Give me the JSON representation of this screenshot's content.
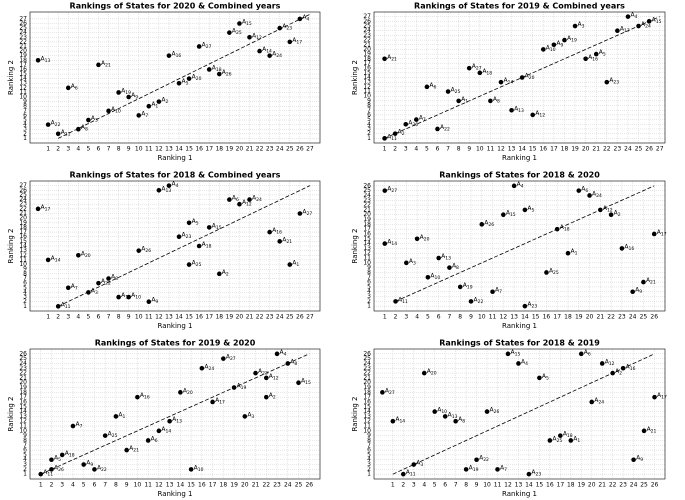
{
  "chart_data": [
    {
      "type": "scatter",
      "title": "Rankings of States for 2020 & Combined years",
      "xlabel": "Ranking 1",
      "ylabel": "Ranking 2",
      "labels": [
        "A13",
        "A22",
        "A11",
        "A6",
        "A8",
        "A3",
        "A21",
        "A10",
        "A19",
        "A9",
        "A7",
        "A1",
        "A2",
        "A16",
        "A5",
        "A20",
        "A27",
        "A18",
        "A26",
        "A25",
        "A15",
        "A12",
        "A14",
        "A24",
        "A23",
        "A17",
        "A4"
      ],
      "x": [
        0,
        1,
        2,
        3,
        4,
        5,
        6,
        7,
        8,
        9,
        10,
        11,
        12,
        13,
        14,
        15,
        16,
        17,
        18,
        19,
        20,
        21,
        22,
        23,
        24,
        25,
        26
      ],
      "y": [
        18,
        4,
        2,
        12,
        3,
        5,
        17,
        7,
        11,
        10,
        6,
        8,
        9,
        19,
        13,
        14,
        21,
        16,
        15,
        24,
        26,
        23,
        20,
        19,
        25,
        22,
        27
      ],
      "trend": {
        "x": [
          2,
          27
        ],
        "y": [
          1,
          28
        ]
      },
      "xlim": [
        -0.8,
        28
      ],
      "ylim": [
        0,
        28.5
      ],
      "xticks": [
        1,
        2,
        3,
        4,
        5,
        6,
        7,
        8,
        9,
        10,
        11,
        12,
        13,
        14,
        15,
        16,
        17,
        18,
        19,
        20,
        21,
        22,
        23,
        24,
        25,
        26,
        27
      ],
      "yticks": [
        1,
        2,
        3,
        4,
        5,
        6,
        7,
        8,
        9,
        10,
        11,
        12,
        13,
        14,
        15,
        16,
        17,
        18,
        19,
        20,
        21,
        22,
        23,
        24,
        25,
        26,
        27
      ],
      "grid": true
    },
    {
      "type": "scatter",
      "title": "Rankings of States for 2019 & Combined years",
      "xlabel": "Ranking 1",
      "ylabel": "Ranking 2",
      "labels": [
        "A21",
        "A11",
        "A2",
        "A26",
        "A7",
        "A6",
        "A22",
        "A25",
        "A1",
        "A27",
        "A18",
        "A8",
        "A14",
        "A13",
        "A20",
        "A12",
        "A10",
        "A9",
        "A19",
        "A3",
        "A5",
        "A16",
        "A23",
        "A17",
        "A4",
        "A24",
        "A15"
      ],
      "x": [
        1,
        1,
        2,
        3,
        4,
        5,
        6,
        7,
        8,
        9,
        10,
        11,
        12,
        13,
        14,
        15,
        16,
        17,
        18,
        19,
        21,
        20,
        22,
        23,
        24,
        25,
        26
      ],
      "y": [
        18,
        1,
        2,
        4,
        5,
        12,
        3,
        11,
        9,
        16,
        15,
        9,
        13,
        7,
        14,
        6,
        20,
        21,
        22,
        25,
        19,
        18,
        13,
        24,
        27,
        25,
        26
      ],
      "trend": {
        "x": [
          1,
          27
        ],
        "y": [
          1,
          27
        ]
      },
      "xlim": [
        0,
        27.5
      ],
      "ylim": [
        0,
        28
      ],
      "xticks": [
        1,
        2,
        3,
        4,
        5,
        6,
        7,
        8,
        9,
        10,
        11,
        12,
        13,
        14,
        15,
        16,
        17,
        18,
        19,
        20,
        21,
        22,
        23,
        24,
        25,
        26,
        27
      ],
      "yticks": [
        1,
        2,
        3,
        4,
        5,
        6,
        7,
        8,
        9,
        10,
        11,
        12,
        13,
        14,
        15,
        16,
        17,
        18,
        19,
        20,
        21,
        22,
        23,
        24,
        25,
        26,
        27
      ],
      "grid": true
    },
    {
      "type": "scatter",
      "title": "Rankings of States for 2018 & Combined years",
      "xlabel": "Ranking 1",
      "ylabel": "Ranking 2",
      "labels": [
        "A17",
        "A14",
        "A11",
        "A7",
        "A20",
        "A3",
        "A22",
        "A8",
        "A19",
        "A10",
        "A26",
        "A9",
        "A13",
        "A4",
        "A23",
        "A5",
        "A25",
        "A18",
        "A2",
        "A6",
        "A12",
        "A24",
        "A16",
        "A21",
        "A1",
        "A15",
        "A27"
      ],
      "x": [
        0,
        1,
        2,
        3,
        4,
        5,
        6,
        7,
        8,
        9,
        10,
        11,
        12,
        13,
        14,
        15,
        15,
        16,
        18,
        19,
        20,
        21,
        23,
        24,
        25,
        17,
        26
      ],
      "y": [
        22,
        11,
        1,
        5,
        12,
        4,
        6,
        7,
        3,
        3,
        13,
        2,
        26,
        27,
        16,
        19,
        10,
        14,
        8,
        24,
        23,
        24,
        17,
        15,
        10,
        18,
        21
      ],
      "trend": {
        "x": [
          2,
          27
        ],
        "y": [
          1,
          27
        ]
      },
      "xlim": [
        -0.8,
        28
      ],
      "ylim": [
        0,
        28
      ],
      "xticks": [
        1,
        2,
        3,
        4,
        5,
        6,
        7,
        8,
        9,
        10,
        11,
        12,
        13,
        14,
        15,
        16,
        17,
        18,
        19,
        20,
        21,
        22,
        23,
        24,
        25,
        26,
        27
      ],
      "yticks": [
        1,
        2,
        3,
        4,
        5,
        6,
        7,
        8,
        9,
        10,
        11,
        12,
        13,
        14,
        15,
        16,
        17,
        18,
        19,
        20,
        21,
        22,
        23,
        24,
        25,
        26,
        27
      ],
      "grid": true
    },
    {
      "type": "scatter",
      "title": "Rankings of States for 2018 & 2020",
      "xlabel": "Ranking 1",
      "ylabel": "Ranking 2",
      "labels": [
        "A27",
        "A14",
        "A11",
        "A3",
        "A20",
        "A10",
        "A13",
        "A8",
        "A19",
        "A22",
        "A26",
        "A7",
        "A15",
        "A23",
        "A4",
        "A5",
        "A18",
        "A1",
        "A25",
        "A6",
        "A24",
        "A12",
        "A2",
        "A16",
        "A9",
        "A21",
        "A17"
      ],
      "x": [
        1,
        1,
        2,
        3,
        4,
        5,
        6,
        7,
        8,
        9,
        10,
        11,
        12,
        14,
        13,
        14,
        17,
        18,
        16,
        19,
        20,
        21,
        22,
        23,
        24,
        25,
        26
      ],
      "y": [
        25,
        14,
        2,
        10,
        15,
        7,
        11,
        9,
        5,
        2,
        18,
        4,
        20,
        1,
        26,
        21,
        17,
        12,
        8,
        25,
        24,
        21,
        20,
        13,
        4,
        6,
        16
      ],
      "trend": {
        "x": [
          2,
          26
        ],
        "y": [
          2,
          26
        ]
      },
      "xlim": [
        0,
        27
      ],
      "ylim": [
        0,
        27
      ],
      "xticks": [
        1,
        2,
        3,
        4,
        5,
        6,
        7,
        8,
        9,
        10,
        11,
        12,
        13,
        14,
        15,
        16,
        17,
        18,
        19,
        20,
        21,
        22,
        23,
        24,
        25,
        26
      ],
      "yticks": [
        1,
        2,
        3,
        4,
        5,
        6,
        7,
        8,
        9,
        10,
        11,
        12,
        13,
        14,
        15,
        16,
        17,
        18,
        19,
        20,
        21,
        22,
        23,
        24,
        25,
        26
      ],
      "grid": true
    },
    {
      "type": "scatter",
      "title": "Rankings of States for 2019 & 2020",
      "xlabel": "Ranking 1",
      "ylabel": "Ranking 2",
      "labels": [
        "A11",
        "A26",
        "A5",
        "A18",
        "A7",
        "A9",
        "A22",
        "A25",
        "A1",
        "A21",
        "A16",
        "A6",
        "A14",
        "A13",
        "A20",
        "A10",
        "A24",
        "A17",
        "A27",
        "A19",
        "A3",
        "A23",
        "A2",
        "A12",
        "A4",
        "A8",
        "A15"
      ],
      "x": [
        1,
        2,
        2,
        3,
        4,
        5,
        6,
        7,
        8,
        9,
        10,
        11,
        12,
        13,
        14,
        15,
        16,
        17,
        18,
        19,
        20,
        21,
        22,
        22,
        23,
        24,
        25
      ],
      "y": [
        1,
        2,
        4,
        5,
        11,
        3,
        2,
        9,
        13,
        6,
        17,
        8,
        10,
        12,
        18,
        2,
        23,
        16,
        25,
        19,
        13,
        22,
        17,
        21,
        26,
        24,
        20
      ],
      "trend": {
        "x": [
          1,
          26
        ],
        "y": [
          1,
          26
        ]
      },
      "xlim": [
        0,
        27
      ],
      "ylim": [
        0,
        27
      ],
      "xticks": [
        1,
        2,
        3,
        4,
        5,
        6,
        7,
        8,
        9,
        10,
        11,
        12,
        13,
        14,
        15,
        16,
        17,
        18,
        19,
        20,
        21,
        22,
        23,
        24,
        25,
        26
      ],
      "yticks": [
        1,
        2,
        3,
        4,
        5,
        6,
        7,
        8,
        9,
        10,
        11,
        12,
        13,
        14,
        15,
        16,
        17,
        18,
        19,
        20,
        21,
        22,
        23,
        24,
        25,
        26
      ],
      "grid": true
    },
    {
      "type": "scatter",
      "title": "Rankings of States for 2018 & 2019",
      "xlabel": "Ranking 1",
      "ylabel": "Ranking 2",
      "labels": [
        "A27",
        "A14",
        "A11",
        "A3",
        "A20",
        "A10",
        "A13",
        "A8",
        "A19",
        "A22",
        "A26",
        "A7",
        "A15",
        "A23",
        "A4",
        "A5",
        "A18",
        "A1",
        "A25",
        "A6",
        "A24",
        "A12",
        "A2",
        "A16",
        "A9",
        "A21",
        "A17"
      ],
      "x": [
        0,
        1,
        2,
        3,
        4,
        5,
        6,
        7,
        8,
        9,
        10,
        11,
        12,
        14,
        13,
        15,
        17,
        18,
        16,
        19,
        20,
        21,
        22,
        23,
        24,
        25,
        26
      ],
      "y": [
        18,
        12,
        1,
        3,
        22,
        14,
        13,
        12,
        2,
        4,
        14,
        2,
        26,
        1,
        24,
        21,
        9,
        8,
        8,
        26,
        16,
        24,
        22,
        23,
        4,
        10,
        17
      ],
      "trend": {
        "x": [
          1,
          26
        ],
        "y": [
          1,
          26
        ]
      },
      "xlim": [
        -0.8,
        27
      ],
      "ylim": [
        0,
        27
      ],
      "xticks": [
        1,
        2,
        3,
        4,
        5,
        6,
        7,
        8,
        9,
        10,
        11,
        12,
        13,
        14,
        15,
        16,
        17,
        18,
        19,
        20,
        21,
        22,
        23,
        24,
        25,
        26
      ],
      "yticks": [
        1,
        2,
        3,
        4,
        5,
        6,
        7,
        8,
        9,
        10,
        11,
        12,
        13,
        14,
        15,
        16,
        17,
        18,
        19,
        20,
        21,
        22,
        23,
        24,
        25,
        26
      ],
      "grid": true
    }
  ]
}
